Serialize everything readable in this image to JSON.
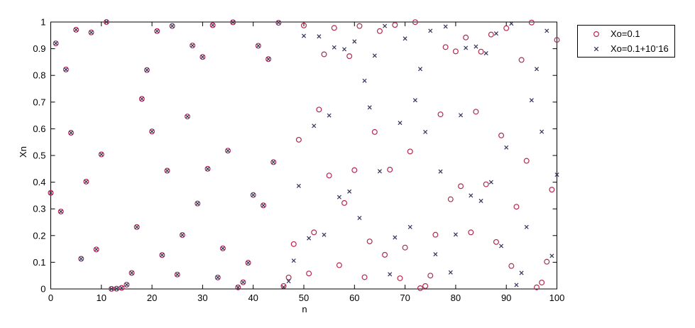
{
  "figure": {
    "background": "#ffffff",
    "plot_box_color": "#000000"
  },
  "chart_data": {
    "type": "scatter",
    "title": "",
    "xlabel": "n",
    "ylabel": "Xn",
    "xlim": [
      0,
      100
    ],
    "ylim": [
      0,
      1
    ],
    "grid": false,
    "xticks": [
      0,
      10,
      20,
      30,
      40,
      50,
      60,
      70,
      80,
      90,
      100
    ],
    "xtick_labels": [
      "0",
      "10",
      "20",
      "30",
      "40",
      "50",
      "60",
      "70",
      "80",
      "90",
      "100"
    ],
    "yticks": [
      0,
      0.1,
      0.2,
      0.3,
      0.4,
      0.5,
      0.6,
      0.7,
      0.8,
      0.9,
      1
    ],
    "ytick_labels": [
      "0",
      "0.1",
      "0.2",
      "0.3",
      "0.4",
      "0.5",
      "0.6",
      "0.7",
      "0.8",
      "0.9",
      "1"
    ],
    "legend": {
      "position": "outside-top-right",
      "entries": [
        {
          "label": "Xo=0.1",
          "marker": "circle",
          "color": "#b5294e"
        },
        {
          "label": "Xo=0.1+10^-16",
          "label_base": "Xo=0.1+10",
          "label_sup": "-",
          "label_tail": "16",
          "marker": "x",
          "color": "#32325a"
        }
      ]
    },
    "x": [
      0,
      1,
      2,
      3,
      4,
      5,
      6,
      7,
      8,
      9,
      10,
      11,
      12,
      13,
      14,
      15,
      16,
      17,
      18,
      19,
      20,
      21,
      22,
      23,
      24,
      25,
      26,
      27,
      28,
      29,
      30,
      31,
      32,
      33,
      34,
      35,
      36,
      37,
      38,
      39,
      40,
      41,
      42,
      43,
      44,
      45,
      46,
      47,
      48,
      49,
      50,
      51,
      52,
      53,
      54,
      55,
      56,
      57,
      58,
      59,
      60,
      61,
      62,
      63,
      64,
      65,
      66,
      67,
      68,
      69,
      70,
      71,
      72,
      73,
      74,
      75,
      76,
      77,
      78,
      79,
      80,
      81,
      82,
      83,
      84,
      85,
      86,
      87,
      88,
      89,
      90,
      91,
      92,
      93,
      94,
      95,
      96,
      97,
      98,
      99,
      100
    ],
    "series": [
      {
        "name": "Xo=0.1",
        "marker": "o",
        "color": "#b5294e",
        "values": [
          0.36,
          0.92,
          0.29,
          0.822,
          0.585,
          0.971,
          0.113,
          0.402,
          0.961,
          0.148,
          0.504,
          0.9999,
          0.0003,
          0.001,
          0.004,
          0.016,
          0.06,
          0.232,
          0.712,
          0.82,
          0.59,
          0.966,
          0.127,
          0.443,
          0.985,
          0.054,
          0.202,
          0.646,
          0.912,
          0.32,
          0.869,
          0.45,
          0.988,
          0.043,
          0.152,
          0.518,
          0.999,
          0.006,
          0.025,
          0.098,
          0.352,
          0.911,
          0.313,
          0.861,
          0.475,
          0.997,
          0.011,
          0.043,
          0.168,
          0.559,
          0.987,
          0.058,
          0.212,
          0.672,
          0.879,
          0.425,
          0.978,
          0.089,
          0.322,
          0.872,
          0.445,
          0.985,
          0.044,
          0.178,
          0.588,
          0.966,
          0.128,
          0.447,
          0.989,
          0.04,
          0.155,
          0.515,
          0.9995,
          0.003,
          0.011,
          0.05,
          0.203,
          0.654,
          0.906,
          0.336,
          0.89,
          0.385,
          0.942,
          0.212,
          0.664,
          0.889,
          0.392,
          0.953,
          0.176,
          0.575,
          0.977,
          0.086,
          0.308,
          0.858,
          0.48,
          0.998,
          0.006,
          0.024,
          0.102,
          0.372,
          0.933
        ]
      },
      {
        "name": "Xo=0.1+10^-16",
        "marker": "x",
        "color": "#32325a",
        "values": [
          0.36,
          0.92,
          0.29,
          0.822,
          0.585,
          0.971,
          0.113,
          0.402,
          0.961,
          0.148,
          0.504,
          0.9999,
          0.0003,
          0.001,
          0.004,
          0.016,
          0.06,
          0.232,
          0.712,
          0.82,
          0.59,
          0.966,
          0.127,
          0.443,
          0.985,
          0.054,
          0.202,
          0.646,
          0.912,
          0.32,
          0.869,
          0.45,
          0.988,
          0.043,
          0.152,
          0.518,
          0.999,
          0.006,
          0.025,
          0.098,
          0.352,
          0.911,
          0.313,
          0.861,
          0.475,
          0.998,
          0.007,
          0.029,
          0.106,
          0.386,
          0.948,
          0.19,
          0.611,
          0.946,
          0.203,
          0.65,
          0.905,
          0.344,
          0.898,
          0.365,
          0.927,
          0.266,
          0.78,
          0.68,
          0.874,
          0.441,
          0.985,
          0.055,
          0.193,
          0.622,
          0.938,
          0.232,
          0.707,
          0.824,
          0.588,
          0.967,
          0.13,
          0.44,
          0.983,
          0.062,
          0.204,
          0.651,
          0.903,
          0.35,
          0.908,
          0.33,
          0.883,
          0.4,
          0.957,
          0.161,
          0.53,
          0.994,
          0.015,
          0.06,
          0.232,
          0.707,
          0.824,
          0.589,
          0.967,
          0.124,
          0.428
        ]
      }
    ]
  }
}
